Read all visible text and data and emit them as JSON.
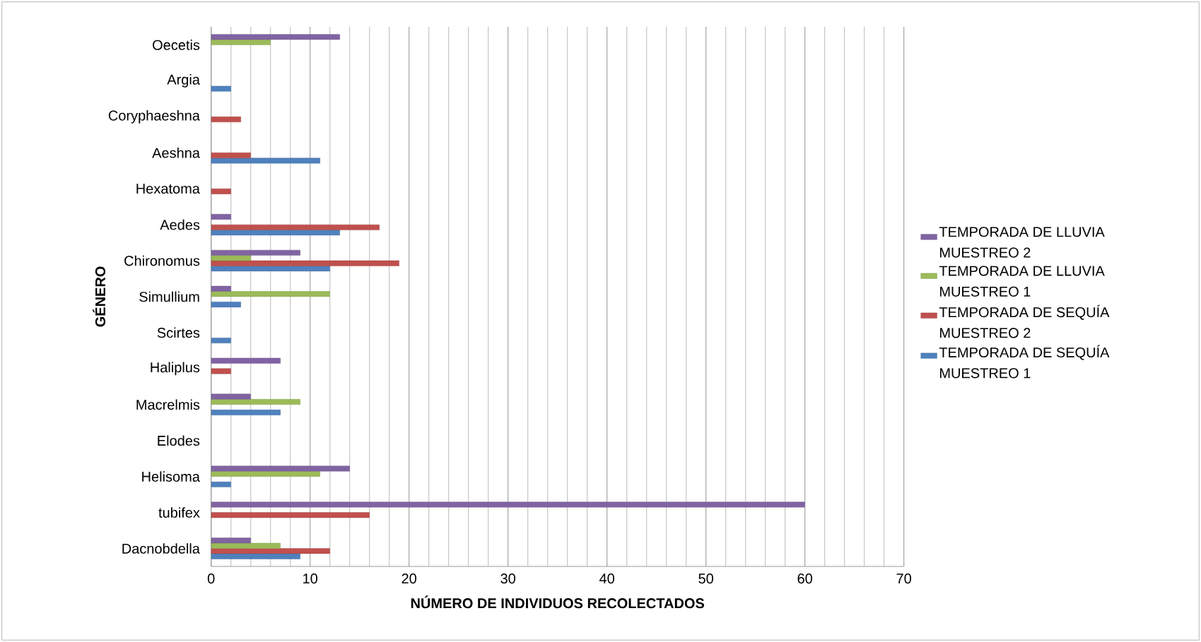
{
  "chart_data": {
    "type": "bar",
    "orientation": "horizontal",
    "xlabel": "NÚMERO DE INDIVIDUOS RECOLECTADOS",
    "ylabel": "GÉNERO",
    "categories": [
      "Oecetis",
      "Argia",
      "Coryphaeshna",
      "Aeshna",
      "Hexatoma",
      "Aedes",
      "Chironomus",
      "Simullium",
      "Scirtes",
      "Haliplus",
      "Macrelmis",
      "Elodes",
      "Helisoma",
      "tubifex",
      "Dacnobdella"
    ],
    "series": [
      {
        "name": "TEMPORADA DE SEQUÍA MUESTREO 1",
        "color": "#4f81bd",
        "values": [
          null,
          2,
          null,
          11,
          null,
          13,
          12,
          3,
          2,
          null,
          7,
          null,
          2,
          null,
          9
        ]
      },
      {
        "name": "TEMPORADA DE SEQUÍA MUESTREO 2",
        "color": "#c0504d",
        "values": [
          null,
          null,
          3,
          4,
          2,
          17,
          19,
          null,
          null,
          2,
          null,
          null,
          null,
          16,
          12
        ]
      },
      {
        "name": "TEMPORADA DE LLUVIA MUESTREO 1",
        "color": "#9bbb59",
        "values": [
          6,
          null,
          null,
          null,
          null,
          null,
          4,
          12,
          null,
          null,
          9,
          null,
          11,
          null,
          7
        ]
      },
      {
        "name": "TEMPORADA DE LLUVIA MUESTREO 2",
        "color": "#8064a2",
        "values": [
          13,
          null,
          null,
          null,
          null,
          2,
          9,
          2,
          null,
          7,
          4,
          null,
          14,
          60,
          4
        ]
      }
    ],
    "xlim": [
      0,
      70
    ],
    "xticks": [
      0,
      10,
      20,
      30,
      40,
      50,
      60,
      70
    ],
    "grid": "x",
    "legend": "right"
  }
}
